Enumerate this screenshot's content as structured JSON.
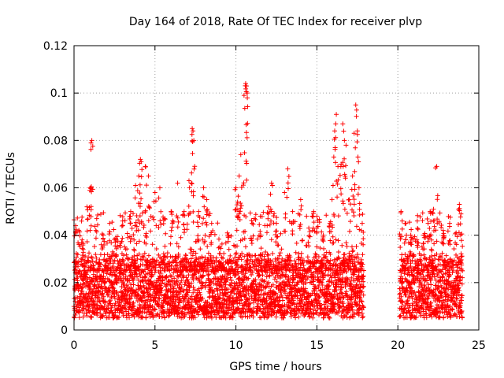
{
  "chart_data": {
    "type": "scatter",
    "title": "Day 164 of 2018, Rate Of TEC Index for receiver plvp",
    "xlabel": "GPS time / hours",
    "ylabel": "ROTI / TECUs",
    "xlim": [
      0,
      25
    ],
    "ylim": [
      0,
      0.12
    ],
    "xticks": [
      0,
      5,
      10,
      15,
      20,
      25
    ],
    "xtick_labels": [
      "0",
      "5",
      "10",
      "15",
      "20",
      "25"
    ],
    "yticks": [
      0,
      0.02,
      0.04,
      0.06,
      0.08,
      0.1,
      0.12
    ],
    "ytick_labels": [
      "0",
      "0.02",
      "0.04",
      "0.06",
      "0.08",
      "0.1",
      "0.12"
    ],
    "grid": true,
    "marker": "+",
    "color": "#ff0000",
    "data_gap_hours": [
      17.9,
      20.1
    ],
    "series": [
      {
        "name": "ROTI",
        "points": [
          [
            0.1,
            0.044
          ],
          [
            0.3,
            0.042
          ],
          [
            0.5,
            0.038
          ],
          [
            0.6,
            0.015
          ],
          [
            0.8,
            0.052
          ],
          [
            1.0,
            0.06
          ],
          [
            1.05,
            0.079
          ],
          [
            1.1,
            0.08
          ],
          [
            1.4,
            0.047
          ],
          [
            1.8,
            0.04
          ],
          [
            2.2,
            0.045
          ],
          [
            2.6,
            0.038
          ],
          [
            3.0,
            0.046
          ],
          [
            3.5,
            0.05
          ],
          [
            3.8,
            0.061
          ],
          [
            4.0,
            0.065
          ],
          [
            4.1,
            0.072
          ],
          [
            4.15,
            0.071
          ],
          [
            4.4,
            0.069
          ],
          [
            4.6,
            0.065
          ],
          [
            5.0,
            0.058
          ],
          [
            5.3,
            0.06
          ],
          [
            5.6,
            0.047
          ],
          [
            6.0,
            0.05
          ],
          [
            6.4,
            0.062
          ],
          [
            6.8,
            0.05
          ],
          [
            7.1,
            0.063
          ],
          [
            7.3,
            0.085
          ],
          [
            7.35,
            0.084
          ],
          [
            7.4,
            0.08
          ],
          [
            7.7,
            0.05
          ],
          [
            8.0,
            0.06
          ],
          [
            8.2,
            0.055
          ],
          [
            8.5,
            0.045
          ],
          [
            9.0,
            0.035
          ],
          [
            9.5,
            0.04
          ],
          [
            10.0,
            0.06
          ],
          [
            10.1,
            0.054
          ],
          [
            10.2,
            0.065
          ],
          [
            10.3,
            0.074
          ],
          [
            10.5,
            0.099
          ],
          [
            10.6,
            0.104
          ],
          [
            10.65,
            0.103
          ],
          [
            10.7,
            0.1
          ],
          [
            11.0,
            0.045
          ],
          [
            11.5,
            0.048
          ],
          [
            12.0,
            0.052
          ],
          [
            12.2,
            0.062
          ],
          [
            12.5,
            0.045
          ],
          [
            13.0,
            0.058
          ],
          [
            13.2,
            0.068
          ],
          [
            13.5,
            0.05
          ],
          [
            14.0,
            0.055
          ],
          [
            14.5,
            0.043
          ],
          [
            14.8,
            0.05
          ],
          [
            15.0,
            0.048
          ],
          [
            15.4,
            0.04
          ],
          [
            15.8,
            0.045
          ],
          [
            16.0,
            0.061
          ],
          [
            16.1,
            0.084
          ],
          [
            16.2,
            0.091
          ],
          [
            16.3,
            0.069
          ],
          [
            16.5,
            0.07
          ],
          [
            16.6,
            0.087
          ],
          [
            16.7,
            0.08
          ],
          [
            16.8,
            0.078
          ],
          [
            17.0,
            0.055
          ],
          [
            17.2,
            0.065
          ],
          [
            17.3,
            0.083
          ],
          [
            17.4,
            0.095
          ],
          [
            17.5,
            0.084
          ],
          [
            17.6,
            0.06
          ],
          [
            17.8,
            0.045
          ],
          [
            20.2,
            0.05
          ],
          [
            20.5,
            0.045
          ],
          [
            20.8,
            0.04
          ],
          [
            21.2,
            0.046
          ],
          [
            21.6,
            0.04
          ],
          [
            22.0,
            0.05
          ],
          [
            22.2,
            0.051
          ],
          [
            22.4,
            0.069
          ],
          [
            22.8,
            0.042
          ],
          [
            23.2,
            0.045
          ],
          [
            23.6,
            0.041
          ],
          [
            23.8,
            0.053
          ],
          [
            23.9,
            0.049
          ]
        ],
        "baseline_band": [
          0.005,
          0.03
        ]
      }
    ]
  }
}
